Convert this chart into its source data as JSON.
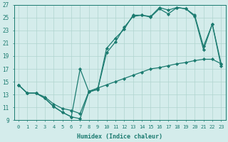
{
  "xlabel": "Humidex (Indice chaleur)",
  "xlim": [
    -0.5,
    23.5
  ],
  "ylim": [
    9,
    27
  ],
  "xticks": [
    0,
    1,
    2,
    3,
    4,
    5,
    6,
    7,
    8,
    9,
    10,
    11,
    12,
    13,
    14,
    15,
    16,
    17,
    18,
    19,
    20,
    21,
    22,
    23
  ],
  "yticks": [
    9,
    11,
    13,
    15,
    17,
    19,
    21,
    23,
    25,
    27
  ],
  "background_color": "#d4eceb",
  "grid_color": "#afd4cf",
  "line_color": "#1b7b70",
  "line1_x": [
    0,
    1,
    2,
    3,
    4,
    5,
    6,
    7,
    8,
    9,
    10,
    11,
    12,
    13,
    14,
    15,
    16,
    17,
    18,
    19,
    20,
    21,
    22,
    23
  ],
  "line1_y": [
    14.5,
    13.2,
    13.2,
    12.4,
    11.1,
    10.2,
    9.5,
    9.2,
    13.4,
    13.8,
    19.5,
    21.2,
    23.5,
    25.2,
    25.4,
    25.2,
    26.6,
    26.2,
    26.6,
    26.4,
    25.2,
    20.0,
    24.0,
    17.8
  ],
  "line2_x": [
    0,
    1,
    2,
    3,
    4,
    5,
    6,
    7,
    8,
    9,
    10,
    11,
    12,
    13,
    14,
    15,
    16,
    17,
    18,
    19,
    20,
    21,
    22,
    23
  ],
  "line2_y": [
    14.5,
    13.2,
    13.2,
    12.4,
    11.1,
    10.2,
    9.5,
    17.0,
    13.4,
    13.8,
    20.2,
    21.8,
    23.2,
    25.4,
    25.4,
    25.1,
    26.4,
    25.6,
    26.6,
    26.4,
    25.4,
    20.5,
    24.0,
    17.4
  ],
  "line3_x": [
    0,
    1,
    2,
    3,
    4,
    5,
    6,
    7,
    8,
    9,
    10,
    11,
    12,
    13,
    14,
    15,
    16,
    17,
    18,
    19,
    20,
    21,
    22,
    23
  ],
  "line3_y": [
    14.5,
    13.2,
    13.2,
    12.6,
    11.5,
    10.8,
    10.5,
    10.0,
    13.5,
    14.0,
    14.5,
    15.0,
    15.5,
    16.0,
    16.5,
    17.0,
    17.2,
    17.5,
    17.8,
    18.0,
    18.3,
    18.5,
    18.5,
    17.8
  ]
}
